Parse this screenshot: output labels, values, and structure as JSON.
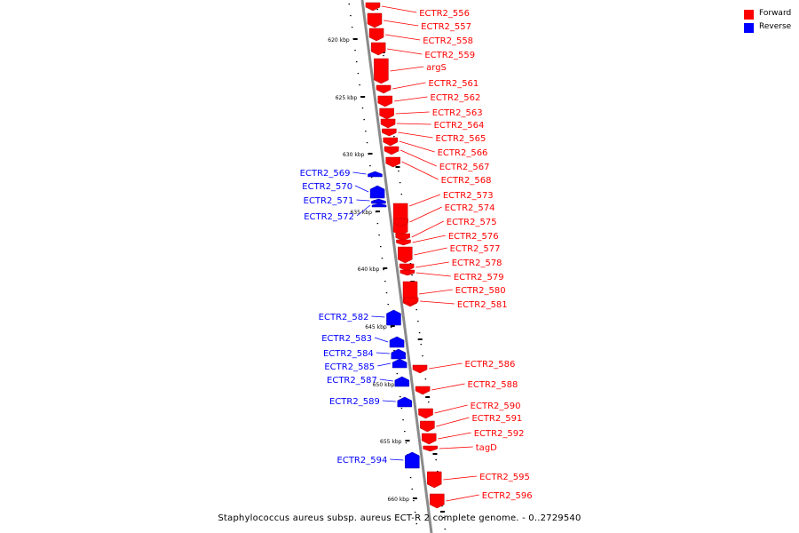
{
  "colors": {
    "forward": "#ff0000",
    "reverse": "#0000ff",
    "backbone": "#8a8a8a",
    "ticks": "#000000"
  },
  "legend": [
    {
      "label": "Forward",
      "color": "#ff0000"
    },
    {
      "label": "Reverse",
      "color": "#0000ff"
    }
  ],
  "caption": "Staphylococcus aureus subsp. aureus ECT-R 2 complete genome. - 0..2729540",
  "kbp_ticks": [
    "620 kbp",
    "625 kbp",
    "630 kbp",
    "635 kbp",
    "640 kbp",
    "645 kbp",
    "650 kbp",
    "655 kbp",
    "660 kbp"
  ],
  "genes": [
    {
      "label": "ECTR2_556",
      "strand": "forward"
    },
    {
      "label": "ECTR2_557",
      "strand": "forward"
    },
    {
      "label": "ECTR2_558",
      "strand": "forward"
    },
    {
      "label": "ECTR2_559",
      "strand": "forward"
    },
    {
      "label": "argS",
      "strand": "forward"
    },
    {
      "label": "ECTR2_561",
      "strand": "forward"
    },
    {
      "label": "ECTR2_562",
      "strand": "forward"
    },
    {
      "label": "ECTR2_563",
      "strand": "forward"
    },
    {
      "label": "ECTR2_564",
      "strand": "forward"
    },
    {
      "label": "ECTR2_565",
      "strand": "forward"
    },
    {
      "label": "ECTR2_566",
      "strand": "forward"
    },
    {
      "label": "ECTR2_567",
      "strand": "forward"
    },
    {
      "label": "ECTR2_568",
      "strand": "forward"
    },
    {
      "label": "ECTR2_569",
      "strand": "reverse"
    },
    {
      "label": "ECTR2_570",
      "strand": "reverse"
    },
    {
      "label": "ECTR2_571",
      "strand": "reverse"
    },
    {
      "label": "ECTR2_572",
      "strand": "reverse"
    },
    {
      "label": "ECTR2_573",
      "strand": "forward"
    },
    {
      "label": "ECTR2_574",
      "strand": "forward"
    },
    {
      "label": "ECTR2_575",
      "strand": "forward"
    },
    {
      "label": "ECTR2_576",
      "strand": "forward"
    },
    {
      "label": "ECTR2_577",
      "strand": "forward"
    },
    {
      "label": "ECTR2_578",
      "strand": "forward"
    },
    {
      "label": "ECTR2_579",
      "strand": "forward"
    },
    {
      "label": "ECTR2_580",
      "strand": "forward"
    },
    {
      "label": "ECTR2_581",
      "strand": "forward"
    },
    {
      "label": "ECTR2_582",
      "strand": "reverse"
    },
    {
      "label": "ECTR2_583",
      "strand": "reverse"
    },
    {
      "label": "ECTR2_584",
      "strand": "reverse"
    },
    {
      "label": "ECTR2_585",
      "strand": "reverse"
    },
    {
      "label": "ECTR2_587",
      "strand": "reverse"
    },
    {
      "label": "ECTR2_589",
      "strand": "reverse"
    },
    {
      "label": "ECTR2_594",
      "strand": "reverse"
    },
    {
      "label": "ECTR2_586",
      "strand": "forward"
    },
    {
      "label": "ECTR2_588",
      "strand": "forward"
    },
    {
      "label": "ECTR2_590",
      "strand": "forward"
    },
    {
      "label": "ECTR2_591",
      "strand": "forward"
    },
    {
      "label": "ECTR2_592",
      "strand": "forward"
    },
    {
      "label": "tagD",
      "strand": "forward"
    },
    {
      "label": "ECTR2_595",
      "strand": "forward"
    },
    {
      "label": "ECTR2_596",
      "strand": "forward"
    }
  ]
}
